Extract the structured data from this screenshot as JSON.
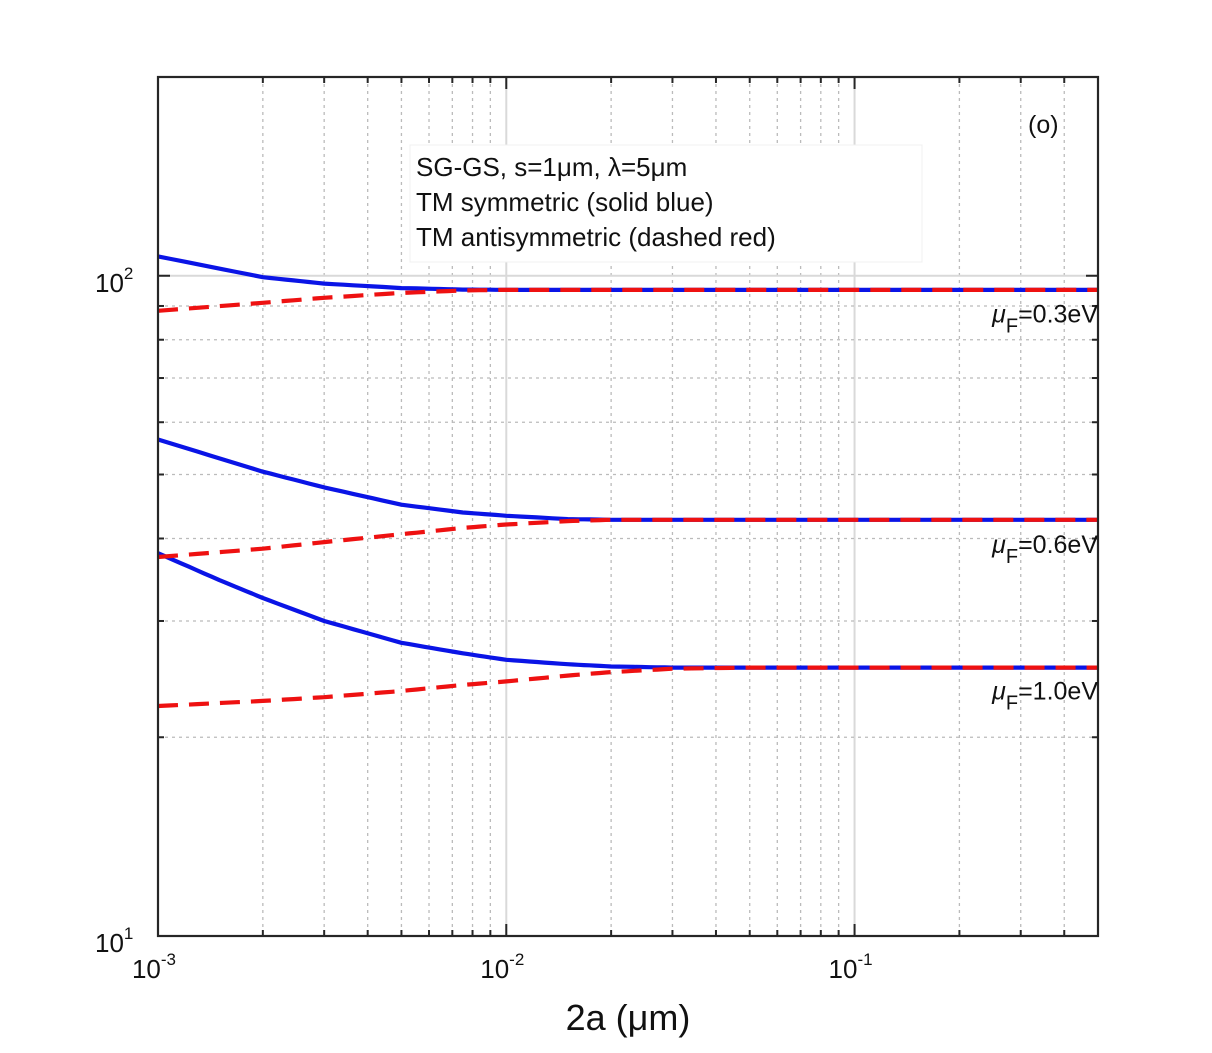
{
  "chart_data": {
    "type": "line",
    "panel_label": "(o)",
    "xlabel": "2a  (μm)",
    "ylabel": "",
    "xscale": "log",
    "yscale": "log",
    "xlim": [
      0.001,
      0.5
    ],
    "ylim": [
      10,
      200
    ],
    "grid": true,
    "x_ticks": [
      {
        "base": "10",
        "exp": "-3",
        "value": 0.001
      },
      {
        "base": "10",
        "exp": "-2",
        "value": 0.01
      },
      {
        "base": "10",
        "exp": "-1",
        "value": 0.1
      }
    ],
    "y_ticks": [
      {
        "base": "10",
        "exp": "1",
        "value": 10
      },
      {
        "base": "10",
        "exp": "2",
        "value": 100
      }
    ],
    "legend": {
      "location": "top-center",
      "lines": [
        "SG-GS,  s=1μm,  λ=5μm",
        "TM symmetric (solid blue)",
        "TM antisymmetric (dashed red)"
      ]
    },
    "series": [
      {
        "name": "TM symmetric, μF=0.3eV",
        "style": "solid",
        "color": "#0a14e6",
        "x": [
          0.001,
          0.002,
          0.003,
          0.005,
          0.0075,
          0.01,
          0.02,
          0.05,
          0.1,
          0.2,
          0.5
        ],
        "y": [
          107,
          99.5,
          97.3,
          95.8,
          95.3,
          95.2,
          95.2,
          95.2,
          95.2,
          95.2,
          95.2
        ]
      },
      {
        "name": "TM antisymmetric, μF=0.3eV",
        "style": "dashed",
        "color": "#ee1111",
        "x": [
          0.001,
          0.002,
          0.003,
          0.005,
          0.0075,
          0.01,
          0.02,
          0.05,
          0.1,
          0.2,
          0.5
        ],
        "y": [
          88.5,
          91.0,
          92.6,
          94.2,
          95.0,
          95.2,
          95.2,
          95.2,
          95.2,
          95.2,
          95.2
        ]
      },
      {
        "name": "TM symmetric, μF=0.6eV",
        "style": "solid",
        "color": "#0a14e6",
        "x": [
          0.001,
          0.002,
          0.003,
          0.005,
          0.0075,
          0.01,
          0.015,
          0.02,
          0.05,
          0.1,
          0.2,
          0.5
        ],
        "y": [
          56.5,
          50.5,
          47.8,
          45.0,
          43.8,
          43.3,
          42.8,
          42.7,
          42.7,
          42.7,
          42.7,
          42.7
        ]
      },
      {
        "name": "TM antisymmetric, μF=0.6eV",
        "style": "dashed",
        "color": "#ee1111",
        "x": [
          0.001,
          0.002,
          0.003,
          0.005,
          0.0075,
          0.01,
          0.015,
          0.02,
          0.05,
          0.1,
          0.2,
          0.5
        ],
        "y": [
          37.5,
          38.6,
          39.5,
          40.6,
          41.5,
          42.0,
          42.5,
          42.7,
          42.7,
          42.7,
          42.7,
          42.7
        ]
      },
      {
        "name": "TM symmetric, μF=1.0eV",
        "style": "solid",
        "color": "#0a14e6",
        "x": [
          0.001,
          0.0015,
          0.002,
          0.003,
          0.005,
          0.0075,
          0.01,
          0.015,
          0.02,
          0.03,
          0.05,
          0.1,
          0.2,
          0.5
        ],
        "y": [
          38.0,
          34.6,
          32.5,
          30.0,
          27.8,
          26.8,
          26.2,
          25.8,
          25.6,
          25.5,
          25.5,
          25.5,
          25.5,
          25.5
        ]
      },
      {
        "name": "TM antisymmetric, μF=1.0eV",
        "style": "dashed",
        "color": "#ee1111",
        "x": [
          0.001,
          0.002,
          0.003,
          0.005,
          0.0075,
          0.01,
          0.015,
          0.02,
          0.03,
          0.05,
          0.1,
          0.2,
          0.5
        ],
        "y": [
          22.3,
          22.7,
          23.0,
          23.5,
          24.0,
          24.3,
          24.8,
          25.1,
          25.4,
          25.5,
          25.5,
          25.5,
          25.5
        ]
      }
    ],
    "annotations": [
      {
        "prefix": "μ",
        "sub": "F",
        "suffix": "=0.3eV",
        "x": 0.5,
        "y": 85
      },
      {
        "prefix": "μ",
        "sub": "F",
        "suffix": "=0.6eV",
        "x": 0.5,
        "y": 38
      },
      {
        "prefix": "μ",
        "sub": "F",
        "suffix": "=1.0eV",
        "x": 0.5,
        "y": 22.8
      }
    ]
  }
}
